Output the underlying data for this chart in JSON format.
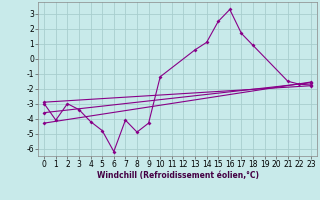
{
  "xlabel": "Windchill (Refroidissement éolien,°C)",
  "bg_color": "#c8eaea",
  "grid_color": "#a8cece",
  "line_color": "#880088",
  "xlim": [
    -0.5,
    23.5
  ],
  "ylim": [
    -6.5,
    3.8
  ],
  "yticks": [
    -6,
    -5,
    -4,
    -3,
    -2,
    -1,
    0,
    1,
    2,
    3
  ],
  "xticks": [
    0,
    1,
    2,
    3,
    4,
    5,
    6,
    7,
    8,
    9,
    10,
    11,
    12,
    13,
    14,
    15,
    16,
    17,
    18,
    19,
    20,
    21,
    22,
    23
  ],
  "series0_x": [
    0,
    1,
    2,
    3,
    4,
    5,
    6,
    7,
    8,
    9,
    10,
    13,
    14,
    15,
    16,
    17,
    18,
    21,
    22,
    23
  ],
  "series0_y": [
    -3.0,
    -4.1,
    -3.0,
    -3.4,
    -4.2,
    -4.8,
    -6.2,
    -4.1,
    -4.9,
    -4.3,
    -1.2,
    0.6,
    1.1,
    2.5,
    3.3,
    1.7,
    0.9,
    -1.5,
    -1.7,
    -1.75
  ],
  "series1_x": [
    0,
    23
  ],
  "series1_y": [
    -2.9,
    -1.8
  ],
  "series2_x": [
    0,
    23
  ],
  "series2_y": [
    -3.6,
    -1.6
  ],
  "series3_x": [
    0,
    23
  ],
  "series3_y": [
    -4.3,
    -1.55
  ],
  "xlabel_fontsize": 5.5,
  "tick_fontsize": 5.5
}
